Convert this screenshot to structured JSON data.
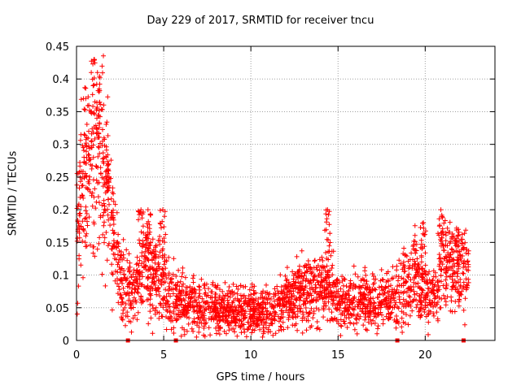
{
  "chart_data": {
    "type": "scatter",
    "title": "Day 229 of 2017, SRMTID for receiver tncu",
    "xlabel": "GPS time / hours",
    "ylabel": "SRMTID / TECUs",
    "xlim": [
      0,
      24
    ],
    "ylim": [
      0,
      0.45
    ],
    "xticks": [
      0,
      5,
      10,
      15,
      20
    ],
    "xtick_labels": [
      "0",
      "5",
      "10",
      "15",
      "20"
    ],
    "yticks": [
      0,
      0.05,
      0.1,
      0.15,
      0.2,
      0.25,
      0.3,
      0.35,
      0.4,
      0.45
    ],
    "ytick_labels": [
      "0",
      "0.05",
      "0.1",
      "0.15",
      "0.2",
      "0.25",
      "0.3",
      "0.35",
      "0.4",
      "0.45"
    ],
    "grid": true,
    "marker": "+",
    "color": "#ff0000",
    "markers_at_zero": [
      2.95,
      5.7,
      18.4,
      22.2
    ],
    "trend": [
      {
        "x": 0.0,
        "y": 0.17
      },
      {
        "x": 0.5,
        "y": 0.25
      },
      {
        "x": 1.0,
        "y": 0.28
      },
      {
        "x": 1.5,
        "y": 0.27
      },
      {
        "x": 2.0,
        "y": 0.18
      },
      {
        "x": 2.5,
        "y": 0.1
      },
      {
        "x": 3.0,
        "y": 0.075
      },
      {
        "x": 3.5,
        "y": 0.085
      },
      {
        "x": 4.0,
        "y": 0.12
      },
      {
        "x": 4.5,
        "y": 0.1
      },
      {
        "x": 5.0,
        "y": 0.085
      },
      {
        "x": 5.5,
        "y": 0.065
      },
      {
        "x": 6.0,
        "y": 0.06
      },
      {
        "x": 7.0,
        "y": 0.05
      },
      {
        "x": 8.0,
        "y": 0.05
      },
      {
        "x": 9.0,
        "y": 0.045
      },
      {
        "x": 10.0,
        "y": 0.045
      },
      {
        "x": 11.0,
        "y": 0.045
      },
      {
        "x": 12.0,
        "y": 0.06
      },
      {
        "x": 13.0,
        "y": 0.075
      },
      {
        "x": 14.0,
        "y": 0.08
      },
      {
        "x": 14.5,
        "y": 0.095
      },
      {
        "x": 15.0,
        "y": 0.06
      },
      {
        "x": 16.0,
        "y": 0.06
      },
      {
        "x": 17.0,
        "y": 0.06
      },
      {
        "x": 18.0,
        "y": 0.06
      },
      {
        "x": 19.0,
        "y": 0.085
      },
      {
        "x": 19.5,
        "y": 0.1
      },
      {
        "x": 20.0,
        "y": 0.07
      },
      {
        "x": 20.5,
        "y": 0.07
      },
      {
        "x": 21.0,
        "y": 0.12
      },
      {
        "x": 21.5,
        "y": 0.12
      },
      {
        "x": 22.0,
        "y": 0.1
      },
      {
        "x": 22.5,
        "y": 0.11
      }
    ],
    "peaks": [
      {
        "x": 0.4,
        "y": 0.37
      },
      {
        "x": 1.0,
        "y": 0.43
      },
      {
        "x": 1.2,
        "y": 0.41
      },
      {
        "x": 0.7,
        "y": 0.32
      },
      {
        "x": 1.7,
        "y": 0.28
      },
      {
        "x": 3.7,
        "y": 0.2
      },
      {
        "x": 4.1,
        "y": 0.2
      },
      {
        "x": 4.95,
        "y": 0.2
      },
      {
        "x": 14.4,
        "y": 0.2
      },
      {
        "x": 19.9,
        "y": 0.18
      },
      {
        "x": 20.9,
        "y": 0.2
      },
      {
        "x": 21.9,
        "y": 0.17
      }
    ]
  }
}
